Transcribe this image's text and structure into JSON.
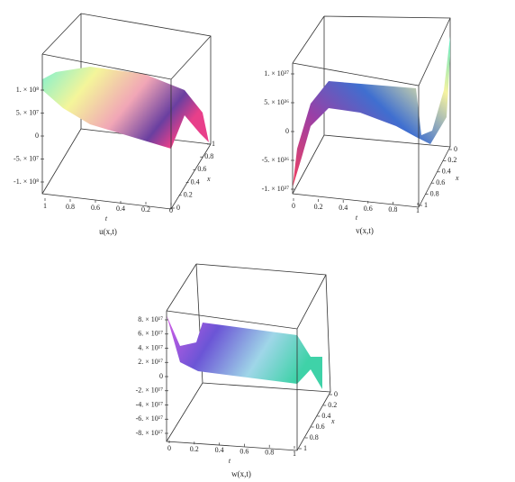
{
  "chart_data": [
    {
      "type": "surface",
      "caption": "u(x,t)",
      "xlabel": "x",
      "ylabel": "t",
      "xlim": [
        0,
        1
      ],
      "xticks": [
        0,
        0.2,
        0.4,
        0.6,
        0.8,
        1
      ],
      "ylim": [
        1,
        0
      ],
      "yticks": [
        1,
        0.8,
        0.6,
        0.4,
        0.2,
        0
      ],
      "zlim": [
        -100000000,
        100000000
      ],
      "zticks": [
        {
          "value": -100000000,
          "label": "-1. × 10⁸"
        },
        {
          "value": -50000000,
          "label": "-5. × 10⁷"
        },
        0,
        {
          "value": 50000000,
          "label": "5. × 10⁷"
        },
        {
          "value": 100000000,
          "label": "1. × 10⁸"
        }
      ]
    },
    {
      "type": "surface",
      "caption": "v(x,t)",
      "xlabel": "x",
      "ylabel": "t",
      "xlim": [
        0,
        1
      ],
      "xticks": [
        0,
        0.2,
        0.4,
        0.6,
        0.8,
        1
      ],
      "ylim": [
        0,
        1
      ],
      "yticks": [
        0,
        0.2,
        0.4,
        0.6,
        0.8,
        1
      ],
      "zlim": [
        -1e+37,
        1e+37
      ],
      "zticks": [
        {
          "value": -1e+37,
          "label": "-1. × 10³⁷"
        },
        {
          "value": -5e+36,
          "label": "-5. × 10³⁶"
        },
        0,
        {
          "value": 5e+36,
          "label": "5. × 10³⁶"
        },
        {
          "value": 1e+37,
          "label": "1. × 10³⁷"
        }
      ]
    },
    {
      "type": "surface",
      "caption": "w(x,t)",
      "xlabel": "x",
      "ylabel": "t",
      "xlim": [
        0,
        1
      ],
      "xticks": [
        0,
        0.2,
        0.4,
        0.6,
        0.8,
        1
      ],
      "ylim": [
        0,
        1
      ],
      "yticks": [
        0,
        0.2,
        0.4,
        0.6,
        0.8,
        1
      ],
      "zlim": [
        -8e+17,
        8e+17
      ],
      "zticks": [
        {
          "value": -8e+17,
          "label": "-8. × 10¹⁷"
        },
        {
          "value": -6e+17,
          "label": "-6. × 10¹⁷"
        },
        {
          "value": -4e+17,
          "label": "-4. × 10¹⁷"
        },
        {
          "value": -2e+17,
          "label": "-2. × 10¹⁷"
        },
        0,
        {
          "value": 2e+17,
          "label": "2. × 10¹⁷"
        },
        {
          "value": 4e+17,
          "label": "4. × 10¹⁷"
        },
        {
          "value": 6e+17,
          "label": "6. × 10¹⁷"
        },
        {
          "value": 8e+17,
          "label": "8. × 10¹⁷"
        }
      ]
    }
  ]
}
